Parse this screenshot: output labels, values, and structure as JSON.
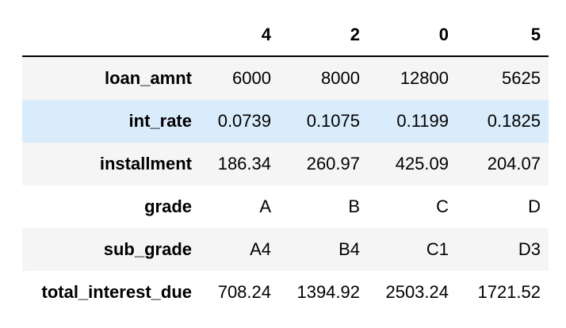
{
  "table": {
    "columns": [
      "4",
      "2",
      "0",
      "5"
    ],
    "rows": [
      {
        "label": "loan_amnt",
        "values": [
          "6000",
          "8000",
          "12800",
          "5625"
        ]
      },
      {
        "label": "int_rate",
        "values": [
          "0.0739",
          "0.1075",
          "0.1199",
          "0.1825"
        ]
      },
      {
        "label": "installment",
        "values": [
          "186.34",
          "260.97",
          "425.09",
          "204.07"
        ]
      },
      {
        "label": "grade",
        "values": [
          "A",
          "B",
          "C",
          "D"
        ]
      },
      {
        "label": "sub_grade",
        "values": [
          "A4",
          "B4",
          "C1",
          "D3"
        ]
      },
      {
        "label": "total_interest_due",
        "values": [
          "708.24",
          "1394.92",
          "2503.24",
          "1721.52"
        ]
      }
    ],
    "hover_row_color": "#d9ecfb",
    "stripe_color": "#f5f5f5"
  }
}
